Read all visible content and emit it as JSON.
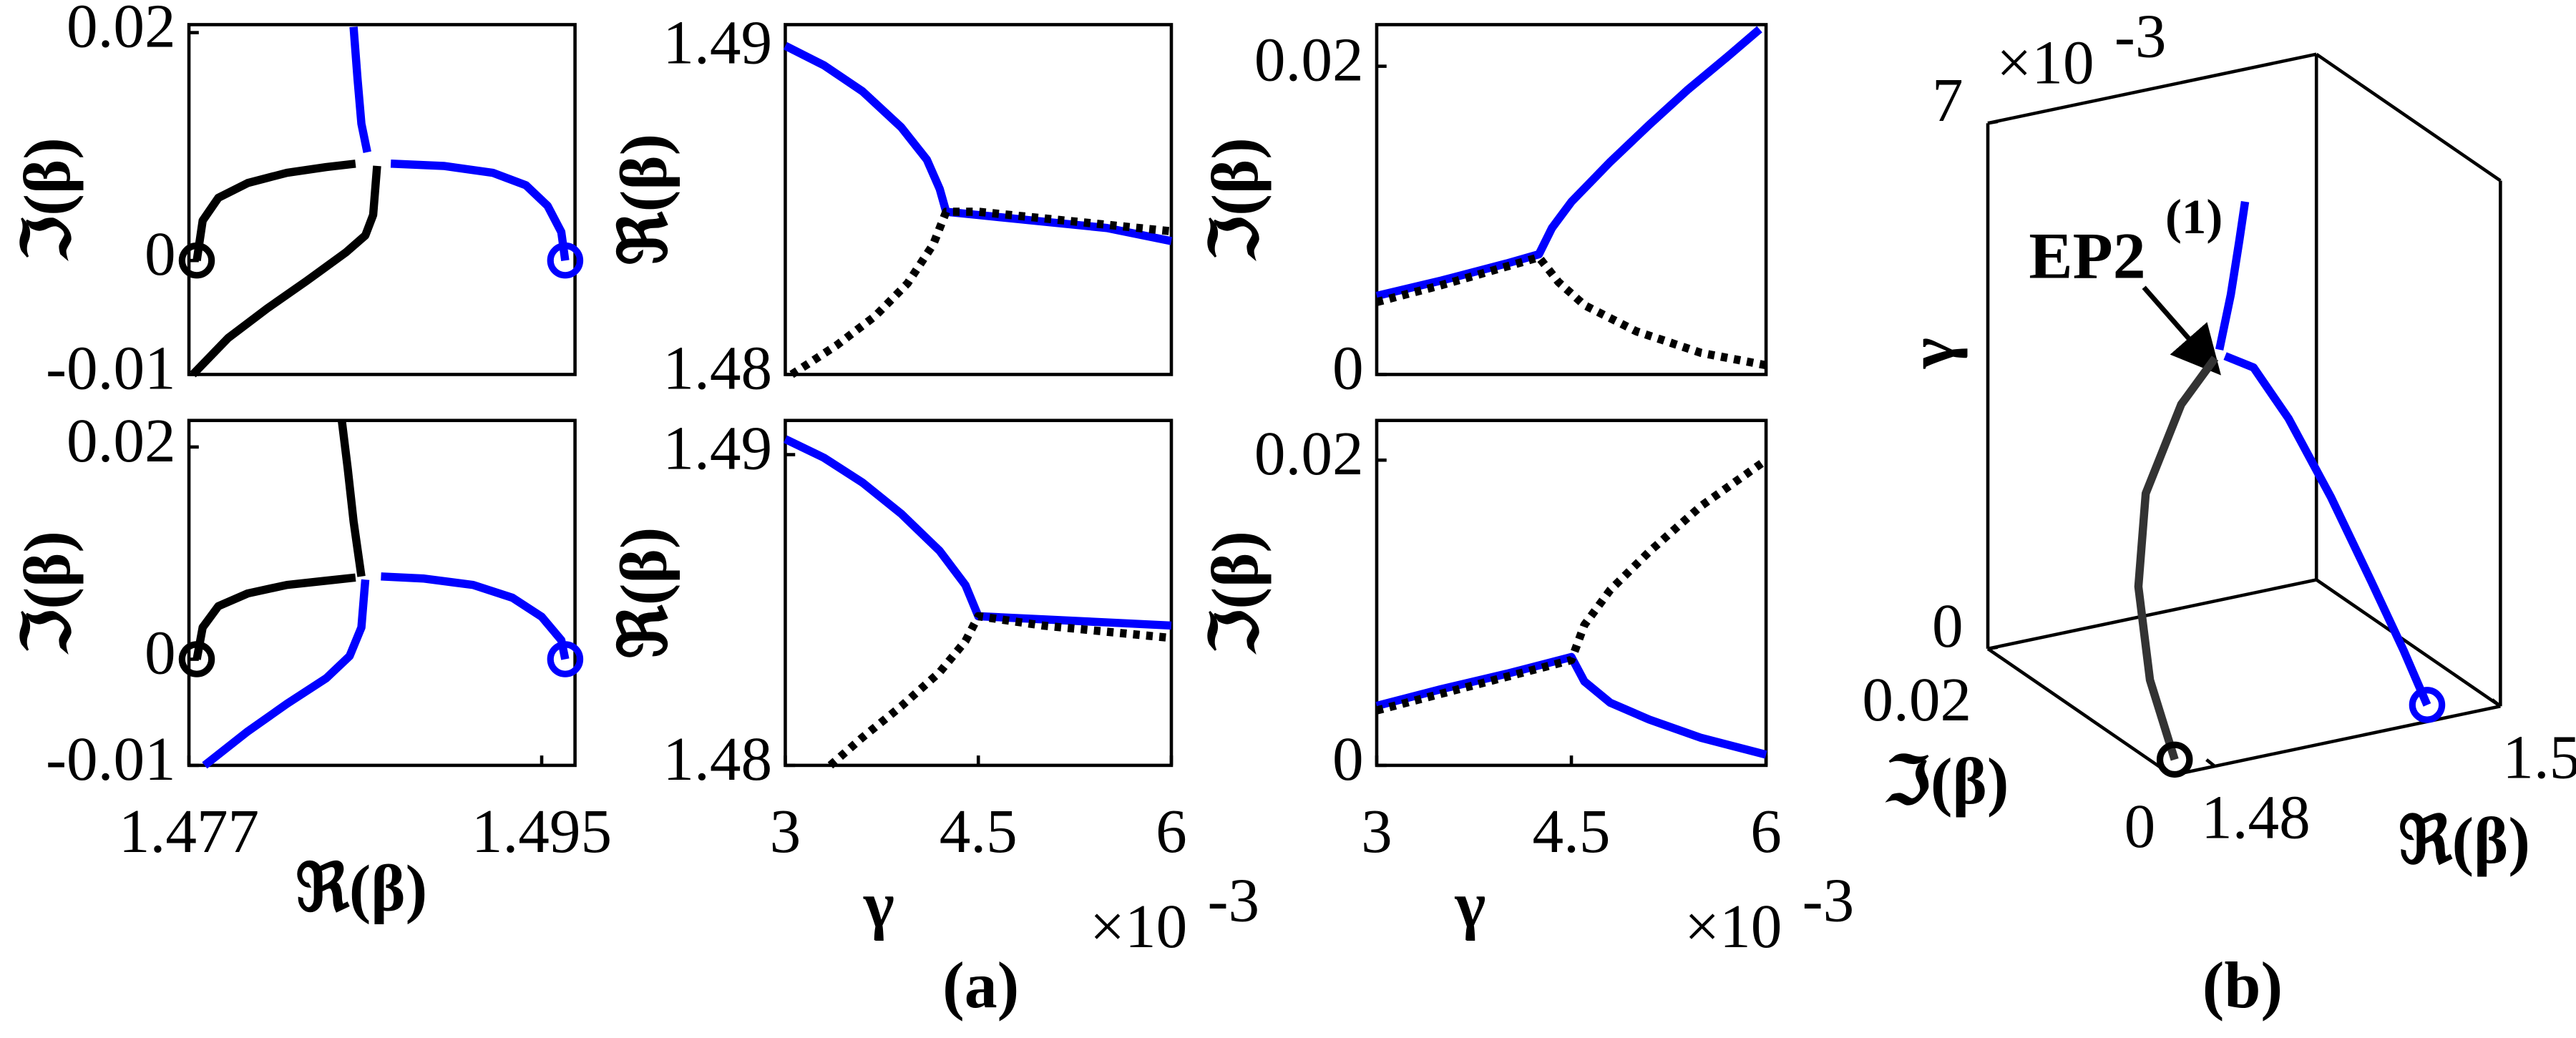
{
  "chart_data": [
    {
      "type": "line",
      "ylabel": "ℑ(β)",
      "xlim": [
        1.477,
        1.4967
      ],
      "ylim": [
        -0.01,
        0.0207
      ],
      "yticks": [
        -0.01,
        0,
        0.02
      ],
      "series": [
        {
          "color": "#000000",
          "x": [
            1.4774,
            1.4777,
            1.4785,
            1.48,
            1.482,
            1.484,
            1.4855
          ],
          "values": [
            0,
            0.0035,
            0.0055,
            0.0068,
            0.0077,
            0.0082,
            0.0085
          ]
        },
        {
          "color": "#000000",
          "x": [
            1.4772,
            1.479,
            1.481,
            1.483,
            1.485,
            1.486,
            1.4864,
            1.4866
          ],
          "values": [
            -0.01,
            -0.0068,
            -0.0042,
            -0.0018,
            0.0007,
            0.0022,
            0.004,
            0.0083
          ]
        },
        {
          "color": "#0000ff",
          "x": [
            1.4854,
            1.4856,
            1.4858,
            1.4861
          ],
          "values": [
            0.0205,
            0.016,
            0.012,
            0.0095
          ]
        },
        {
          "color": "#0000ff",
          "x": [
            1.4873,
            1.49,
            1.4925,
            1.4942,
            1.4953,
            1.496,
            1.4962
          ],
          "values": [
            0.0085,
            0.0083,
            0.0077,
            0.0066,
            0.0048,
            0.0025,
            0
          ]
        },
        {
          "color": "#000000",
          "marker": "circle",
          "x": [
            1.4774
          ],
          "values": [
            0
          ]
        },
        {
          "color": "#0000ff",
          "marker": "circle",
          "x": [
            1.4962
          ],
          "values": [
            0
          ]
        }
      ]
    },
    {
      "type": "line",
      "ylabel": "ℜ(β)",
      "xlim": [
        3,
        6
      ],
      "ylim": [
        1.48,
        1.49075
      ],
      "yticks": [
        1.48,
        1.49
      ],
      "series": [
        {
          "color": "#0000ff",
          "x": [
            3,
            3.3,
            3.6,
            3.9,
            4.1,
            4.2,
            4.25,
            4.5,
            5,
            5.5,
            6
          ],
          "values": [
            1.4901,
            1.4895,
            1.4887,
            1.4876,
            1.4866,
            1.4857,
            1.485,
            1.4849,
            1.4847,
            1.4845,
            1.4841
          ]
        },
        {
          "color": "#000000",
          "dash": "dotted",
          "x": [
            3.05,
            3.4,
            3.7,
            3.95,
            4.15,
            4.25,
            4.5,
            5,
            5.5,
            6
          ],
          "values": [
            1.48,
            1.4809,
            1.4818,
            1.4828,
            1.484,
            1.485,
            1.485,
            1.4848,
            1.4846,
            1.4844
          ]
        }
      ]
    },
    {
      "type": "line",
      "ylabel": "ℑ(β)",
      "xlim": [
        3,
        6
      ],
      "ylim": [
        0,
        0.0227
      ],
      "yticks": [
        0,
        0.02
      ],
      "series": [
        {
          "color": "#0000ff",
          "x": [
            3,
            3.5,
            4,
            4.25,
            4.35,
            4.5,
            4.8,
            5.1,
            5.4,
            5.7,
            5.95
          ],
          "values": [
            0.0051,
            0.0061,
            0.0072,
            0.0078,
            0.0095,
            0.0112,
            0.0138,
            0.0162,
            0.0185,
            0.0206,
            0.0224
          ]
        },
        {
          "color": "#000000",
          "dash": "dotted",
          "x": [
            3,
            3.5,
            4,
            4.25,
            4.4,
            4.6,
            5,
            5.5,
            6
          ],
          "values": [
            0.0047,
            0.0058,
            0.007,
            0.0076,
            0.006,
            0.0045,
            0.0028,
            0.0014,
            0.0006
          ]
        }
      ]
    },
    {
      "type": "line",
      "ylabel": "ℑ(β)",
      "xlabel": "ℜ(β)",
      "xlim": [
        1.477,
        1.4967
      ],
      "ylim": [
        -0.01,
        0.0225
      ],
      "xticks": [
        1.477,
        1.495
      ],
      "yticks": [
        -0.01,
        0,
        0.02
      ],
      "series": [
        {
          "color": "#000000",
          "x": [
            1.4774,
            1.4777,
            1.4785,
            1.48,
            1.482,
            1.484,
            1.4855
          ],
          "values": [
            0,
            0.003,
            0.005,
            0.0062,
            0.007,
            0.0074,
            0.0077
          ]
        },
        {
          "color": "#000000",
          "x": [
            1.4848,
            1.4851,
            1.4854,
            1.4858
          ],
          "values": [
            0.0225,
            0.018,
            0.013,
            0.0078
          ]
        },
        {
          "color": "#0000ff",
          "x": [
            1.4778,
            1.48,
            1.482,
            1.484,
            1.4852,
            1.4858,
            1.486
          ],
          "values": [
            -0.01,
            -0.0068,
            -0.0042,
            -0.0018,
            0.0003,
            0.003,
            0.0075
          ]
        },
        {
          "color": "#0000ff",
          "x": [
            1.4868,
            1.489,
            1.4915,
            1.4935,
            1.495,
            1.496,
            1.4962
          ],
          "values": [
            0.0078,
            0.0076,
            0.007,
            0.0058,
            0.004,
            0.0018,
            0
          ]
        },
        {
          "color": "#000000",
          "marker": "circle",
          "x": [
            1.4774
          ],
          "values": [
            0
          ]
        },
        {
          "color": "#0000ff",
          "marker": "circle",
          "x": [
            1.4962
          ],
          "values": [
            0
          ]
        }
      ]
    },
    {
      "type": "line",
      "ylabel": "ℜ(β)",
      "xlabel": "γ",
      "x_scale_base": "×10",
      "x_scale_exponent": "-3",
      "xlim": [
        3,
        6
      ],
      "ylim": [
        1.48,
        1.4911
      ],
      "xticks": [
        3,
        4.5,
        6
      ],
      "yticks": [
        1.48,
        1.49
      ],
      "series": [
        {
          "color": "#0000ff",
          "x": [
            3,
            3.3,
            3.6,
            3.9,
            4.2,
            4.4,
            4.5,
            5,
            5.5,
            6
          ],
          "values": [
            1.4905,
            1.4899,
            1.4891,
            1.4881,
            1.4869,
            1.4858,
            1.4848,
            1.4847,
            1.4846,
            1.4845
          ]
        },
        {
          "color": "#000000",
          "dash": "dotted",
          "x": [
            3.35,
            3.6,
            3.9,
            4.2,
            4.4,
            4.5,
            5,
            5.5,
            6
          ],
          "values": [
            1.48,
            1.4809,
            1.4819,
            1.483,
            1.484,
            1.4848,
            1.4845,
            1.4843,
            1.4841
          ]
        }
      ]
    },
    {
      "type": "line",
      "ylabel": "ℑ(β)",
      "xlabel": "γ",
      "x_scale_base": "×10",
      "x_scale_exponent": "-3",
      "xlim": [
        3,
        6
      ],
      "ylim": [
        0,
        0.0226
      ],
      "xticks": [
        3,
        4.5,
        6
      ],
      "yticks": [
        0,
        0.02
      ],
      "series": [
        {
          "color": "#0000ff",
          "x": [
            3,
            3.5,
            4,
            4.5,
            4.6,
            4.8,
            5.1,
            5.5,
            6
          ],
          "values": [
            0.0039,
            0.005,
            0.006,
            0.0071,
            0.0055,
            0.0041,
            0.003,
            0.0018,
            0.0007
          ]
        },
        {
          "color": "#000000",
          "dash": "dotted",
          "x": [
            3,
            3.5,
            4,
            4.5,
            4.6,
            4.8,
            5.1,
            5.5,
            6
          ],
          "values": [
            0.0036,
            0.0047,
            0.0058,
            0.0069,
            0.0092,
            0.0115,
            0.014,
            0.017,
            0.02
          ]
        }
      ]
    },
    {
      "type": "line3d",
      "xlabel": "ℜ(β)",
      "ylabel": "ℑ(β)",
      "zlabel": "γ",
      "z_scale_base": "×10",
      "z_scale_exponent": "-3",
      "xlim": [
        1.477,
        1.5
      ],
      "ylim": [
        0,
        0.02
      ],
      "zlim": [
        0,
        7
      ],
      "xticks": [
        1.48,
        1.5
      ],
      "yticks": [
        0,
        0.02
      ],
      "zticks": [
        0,
        7
      ],
      "annotation": {
        "text": "EP2",
        "superscript": "(1)"
      },
      "series": [
        {
          "color": "#333333",
          "x": [
            1.4772,
            1.4774,
            1.4782,
            1.48,
            1.483,
            1.4855
          ],
          "y": [
            0,
            0.003,
            0.0055,
            0.0075,
            0.0083,
            0.0085
          ],
          "z": [
            0.2,
            1,
            2,
            3,
            4,
            4.5
          ]
        },
        {
          "color": "#0000ff",
          "x": [
            1.4862,
            1.488,
            1.49,
            1.492,
            1.4935,
            1.4945,
            1.495
          ],
          "y": [
            0.0085,
            0.0082,
            0.0075,
            0.006,
            0.004,
            0.002,
            0.0002
          ],
          "z": [
            4.5,
            4.3,
            3.6,
            2.6,
            1.6,
            0.8,
            0.2
          ]
        },
        {
          "color": "#0000ff",
          "x": [
            1.4858,
            1.4866,
            1.4872,
            1.4876
          ],
          "y": [
            0.0085,
            0.0085,
            0.0085,
            0.0085
          ],
          "z": [
            4.6,
            5.3,
            6,
            6.5
          ]
        },
        {
          "color": "#000000",
          "marker": "circle",
          "x": [
            1.4772
          ],
          "y": [
            0
          ],
          "z": [
            0.2
          ]
        },
        {
          "color": "#0000ff",
          "marker": "circle",
          "x": [
            1.495
          ],
          "y": [
            0.0002
          ],
          "z": [
            0.2
          ]
        }
      ]
    }
  ],
  "panel_labels": [
    "(a)",
    "(b)"
  ]
}
